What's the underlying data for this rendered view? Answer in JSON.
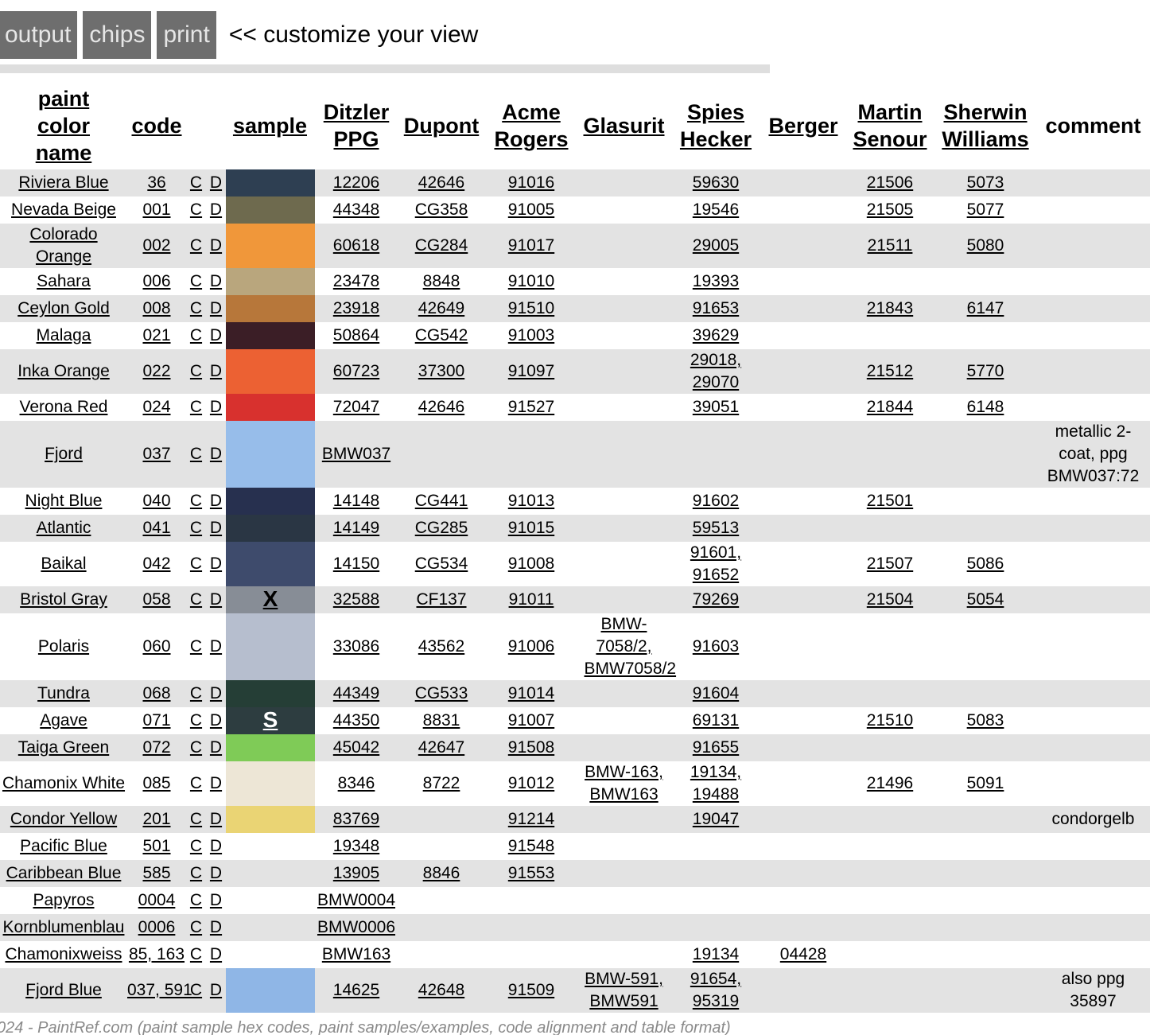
{
  "toolbar": {
    "output_label": "output",
    "chips_label": "chips",
    "print_label": "print",
    "customize_text": "<< customize your view"
  },
  "table": {
    "headers": {
      "name": "paint color name",
      "code": "code",
      "sample": "sample",
      "ditzler": "Ditzler PPG",
      "dupont": "Dupont",
      "acme": "Acme Rogers",
      "glasurit": "Glasurit",
      "spies": "Spies Hecker",
      "berger": "Berger",
      "martin": "Martin Senour",
      "sherwin": "Sherwin Williams",
      "comment": "comment"
    },
    "rows": [
      {
        "name": "Riviera Blue",
        "code": "36",
        "c": "C",
        "d": "D",
        "color": "#2e3f52",
        "mark": "",
        "ppg": "12206",
        "dupont": "42646",
        "acme": "91016",
        "glasurit": "",
        "spies": "59630",
        "berger": "",
        "martin": "21506",
        "sherwin": "5073",
        "comment": ""
      },
      {
        "name": "Nevada Beige",
        "code": "001",
        "c": "C",
        "d": "D",
        "color": "#6e6a4e",
        "mark": "",
        "ppg": "44348",
        "dupont": "CG358",
        "acme": "91005",
        "glasurit": "",
        "spies": "19546",
        "berger": "",
        "martin": "21505",
        "sherwin": "5077",
        "comment": ""
      },
      {
        "name": "Colorado Orange",
        "code": "002",
        "c": "C",
        "d": "D",
        "color": "#f0973a",
        "mark": "",
        "ppg": "60618",
        "dupont": "CG284",
        "acme": "91017",
        "glasurit": "",
        "spies": "29005",
        "berger": "",
        "martin": "21511",
        "sherwin": "5080",
        "comment": ""
      },
      {
        "name": "Sahara",
        "code": "006",
        "c": "C",
        "d": "D",
        "color": "#b9a67d",
        "mark": "",
        "ppg": "23478",
        "dupont": "8848",
        "acme": "91010",
        "glasurit": "",
        "spies": "19393",
        "berger": "",
        "martin": "",
        "sherwin": "",
        "comment": ""
      },
      {
        "name": "Ceylon Gold",
        "code": "008",
        "c": "C",
        "d": "D",
        "color": "#b7773a",
        "mark": "",
        "ppg": "23918",
        "dupont": "42649",
        "acme": "91510",
        "glasurit": "",
        "spies": "91653",
        "berger": "",
        "martin": "21843",
        "sherwin": "6147",
        "comment": ""
      },
      {
        "name": "Malaga",
        "code": "021",
        "c": "C",
        "d": "D",
        "color": "#3b1e26",
        "mark": "",
        "ppg": "50864",
        "dupont": "CG542",
        "acme": "91003",
        "glasurit": "",
        "spies": "39629",
        "berger": "",
        "martin": "",
        "sherwin": "",
        "comment": ""
      },
      {
        "name": "Inka Orange",
        "code": "022",
        "c": "C",
        "d": "D",
        "color": "#ec6133",
        "mark": "",
        "ppg": "60723",
        "dupont": "37300",
        "acme": "91097",
        "glasurit": "",
        "spies": "29018, 29070",
        "berger": "",
        "martin": "21512",
        "sherwin": "5770",
        "comment": ""
      },
      {
        "name": "Verona Red",
        "code": "024",
        "c": "C",
        "d": "D",
        "color": "#d8312e",
        "mark": "",
        "ppg": "72047",
        "dupont": "42646",
        "acme": "91527",
        "glasurit": "",
        "spies": "39051",
        "berger": "",
        "martin": "21844",
        "sherwin": "6148",
        "comment": ""
      },
      {
        "name": "Fjord",
        "code": "037",
        "c": "C",
        "d": "D",
        "color": "#97bdea",
        "mark": "",
        "ppg": "BMW037",
        "dupont": "",
        "acme": "",
        "glasurit": "",
        "spies": "",
        "berger": "",
        "martin": "",
        "sherwin": "",
        "comment": "metallic 2-coat, ppg BMW037:72"
      },
      {
        "name": "Night Blue",
        "code": "040",
        "c": "C",
        "d": "D",
        "color": "#27304f",
        "mark": "",
        "ppg": "14148",
        "dupont": "CG441",
        "acme": "91013",
        "glasurit": "",
        "spies": "91602",
        "berger": "",
        "martin": "21501",
        "sherwin": "",
        "comment": ""
      },
      {
        "name": "Atlantic",
        "code": "041",
        "c": "C",
        "d": "D",
        "color": "#2a3644",
        "mark": "",
        "ppg": "14149",
        "dupont": "CG285",
        "acme": "91015",
        "glasurit": "",
        "spies": "59513",
        "berger": "",
        "martin": "",
        "sherwin": "",
        "comment": ""
      },
      {
        "name": "Baikal",
        "code": "042",
        "c": "C",
        "d": "D",
        "color": "#3e4b6c",
        "mark": "",
        "ppg": "14150",
        "dupont": "CG534",
        "acme": "91008",
        "glasurit": "",
        "spies": "91601, 91652",
        "berger": "",
        "martin": "21507",
        "sherwin": "5086",
        "comment": ""
      },
      {
        "name": "Bristol Gray",
        "code": "058",
        "c": "C",
        "d": "D",
        "color": "#878d96",
        "mark": "X",
        "ppg": "32588",
        "dupont": "CF137",
        "acme": "91011",
        "glasurit": "",
        "spies": "79269",
        "berger": "",
        "martin": "21504",
        "sherwin": "5054",
        "comment": ""
      },
      {
        "name": "Polaris",
        "code": "060",
        "c": "C",
        "d": "D",
        "color": "#b6bece",
        "mark": "",
        "ppg": "33086",
        "dupont": "43562",
        "acme": "91006",
        "glasurit": "BMW-7058/2, BMW7058/2",
        "spies": "91603",
        "berger": "",
        "martin": "",
        "sherwin": "",
        "comment": ""
      },
      {
        "name": "Tundra",
        "code": "068",
        "c": "C",
        "d": "D",
        "color": "#253e36",
        "mark": "",
        "ppg": "44349",
        "dupont": "CG533",
        "acme": "91014",
        "glasurit": "",
        "spies": "91604",
        "berger": "",
        "martin": "",
        "sherwin": "",
        "comment": ""
      },
      {
        "name": "Agave",
        "code": "071",
        "c": "C",
        "d": "D",
        "color": "#2d3d40",
        "mark": "S",
        "ppg": "44350",
        "dupont": "8831",
        "acme": "91007",
        "glasurit": "",
        "spies": "69131",
        "berger": "",
        "martin": "21510",
        "sherwin": "5083",
        "comment": ""
      },
      {
        "name": "Taiga Green",
        "code": "072",
        "c": "C",
        "d": "D",
        "color": "#7fcb57",
        "mark": "",
        "ppg": "45042",
        "dupont": "42647",
        "acme": "91508",
        "glasurit": "",
        "spies": "91655",
        "berger": "",
        "martin": "",
        "sherwin": "",
        "comment": ""
      },
      {
        "name": "Chamonix White",
        "code": "085",
        "c": "C",
        "d": "D",
        "color": "#ede6d6",
        "mark": "",
        "ppg": "8346",
        "dupont": "8722",
        "acme": "91012",
        "glasurit": "BMW-163, BMW163",
        "spies": "19134, 19488",
        "berger": "",
        "martin": "21496",
        "sherwin": "5091",
        "comment": ""
      },
      {
        "name": "Condor Yellow",
        "code": "201",
        "c": "C",
        "d": "D",
        "color": "#ead474",
        "mark": "",
        "ppg": "83769",
        "dupont": "",
        "acme": "91214",
        "glasurit": "",
        "spies": "19047",
        "berger": "",
        "martin": "",
        "sherwin": "",
        "comment": "condorgelb"
      },
      {
        "name": "Pacific Blue",
        "code": "501",
        "c": "C",
        "d": "D",
        "color": "",
        "mark": "",
        "ppg": "19348",
        "dupont": "",
        "acme": "91548",
        "glasurit": "",
        "spies": "",
        "berger": "",
        "martin": "",
        "sherwin": "",
        "comment": ""
      },
      {
        "name": "Caribbean Blue",
        "code": "585",
        "c": "C",
        "d": "D",
        "color": "",
        "mark": "",
        "ppg": "13905",
        "dupont": "8846",
        "acme": "91553",
        "glasurit": "",
        "spies": "",
        "berger": "",
        "martin": "",
        "sherwin": "",
        "comment": ""
      },
      {
        "name": "Papyros",
        "code": "0004",
        "c": "C",
        "d": "D",
        "color": "",
        "mark": "",
        "ppg": "BMW0004",
        "dupont": "",
        "acme": "",
        "glasurit": "",
        "spies": "",
        "berger": "",
        "martin": "",
        "sherwin": "",
        "comment": ""
      },
      {
        "name": "Kornblumenblau",
        "code": "0006",
        "c": "C",
        "d": "D",
        "color": "",
        "mark": "",
        "ppg": "BMW0006",
        "dupont": "",
        "acme": "",
        "glasurit": "",
        "spies": "",
        "berger": "",
        "martin": "",
        "sherwin": "",
        "comment": ""
      },
      {
        "name": "Chamonixweiss",
        "code": "85, 163",
        "c": "C",
        "d": "D",
        "color": "",
        "mark": "",
        "ppg": "BMW163",
        "dupont": "",
        "acme": "",
        "glasurit": "",
        "spies": "19134",
        "berger": "04428",
        "martin": "",
        "sherwin": "",
        "comment": ""
      },
      {
        "name": "Fjord Blue",
        "code": "037, 591",
        "c": "C",
        "d": "D",
        "color": "#8fb6e6",
        "mark": "",
        "ppg": "14625",
        "dupont": "42648",
        "acme": "91509",
        "glasurit": "BMW-591, BMW591",
        "spies": "91654, 95319",
        "berger": "",
        "martin": "",
        "sherwin": "",
        "comment": "also ppg 35897"
      }
    ]
  },
  "footer": {
    "text": "024 - PaintRef.com (paint sample hex codes, paint samples/examples, code alignment and table format)"
  }
}
